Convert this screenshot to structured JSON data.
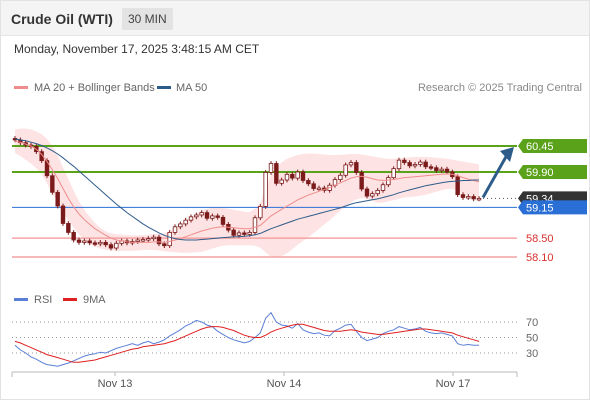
{
  "header": {
    "title": "Crude Oil (WTI)",
    "timeframe": "30 MIN"
  },
  "timestamp": "Monday, November 17, 2025 3:48:15 AM CET",
  "price_panel": {
    "legend": [
      {
        "label": "MA 20 + Bollinger Bands",
        "color": "#f08c8c"
      },
      {
        "label": "MA 50",
        "color": "#2e5c8a"
      }
    ],
    "credit": "Research © 2025 Trading Central"
  },
  "rsi_panel": {
    "legend": [
      {
        "label": "RSI",
        "color": "#5b7fd6"
      },
      {
        "label": "9MA",
        "color": "#e02020"
      }
    ]
  },
  "colors": {
    "resistance": "#5aa219",
    "support_pink": "#f4a3a3",
    "pivot_blue": "#2a6fd6",
    "current_price": "#333333",
    "arrow": "#2e5c8a",
    "candle": "#7a1a1a",
    "bollinger_fill": "#fde3e3",
    "rsi": "#5b7fd6",
    "rsi_ma": "#e02020"
  },
  "chart_data": [
    {
      "type": "candlestick",
      "x_labels": [
        "Nov 13",
        "Nov 14",
        "Nov 17"
      ],
      "ylim": [
        57.8,
        60.9
      ],
      "levels": [
        {
          "value": 60.45,
          "label": "60.45",
          "kind": "resistance"
        },
        {
          "value": 59.9,
          "label": "59.90",
          "kind": "resistance"
        },
        {
          "value": 59.34,
          "label": "59.34",
          "kind": "current"
        },
        {
          "value": 59.15,
          "label": "59.15",
          "kind": "pivot"
        },
        {
          "value": 58.5,
          "label": "58.50",
          "kind": "support"
        },
        {
          "value": 58.1,
          "label": "58.10",
          "kind": "support"
        }
      ],
      "close": [
        60.58,
        60.52,
        60.47,
        60.44,
        60.33,
        60.14,
        59.82,
        59.47,
        59.18,
        58.81,
        58.62,
        58.46,
        58.41,
        58.44,
        58.4,
        58.38,
        58.41,
        58.36,
        58.29,
        58.39,
        58.44,
        58.4,
        58.43,
        58.46,
        58.47,
        58.49,
        58.52,
        58.38,
        58.34,
        58.62,
        58.74,
        58.8,
        58.88,
        58.95,
        58.99,
        59.04,
        58.92,
        58.97,
        58.94,
        58.79,
        58.67,
        58.56,
        58.61,
        58.58,
        58.62,
        58.93,
        59.17,
        59.89,
        60.08,
        59.66,
        59.73,
        59.85,
        59.77,
        59.9,
        59.72,
        59.65,
        59.55,
        59.56,
        59.51,
        59.62,
        59.74,
        59.83,
        60.05,
        60.1,
        59.89,
        59.54,
        59.39,
        59.44,
        59.51,
        59.63,
        59.78,
        59.97,
        60.15,
        60.1,
        60.03,
        60.06,
        60.11,
        60.01,
        59.99,
        59.93,
        59.96,
        59.9,
        59.8,
        59.42,
        59.36,
        59.38,
        59.33,
        59.34
      ],
      "ma20": [
        60.55,
        60.53,
        60.49,
        60.45,
        60.38,
        60.27,
        60.12,
        59.95,
        59.76,
        59.55,
        59.34,
        59.16,
        59.01,
        58.89,
        58.79,
        58.7,
        58.63,
        58.56,
        58.5,
        58.46,
        58.44,
        58.42,
        58.41,
        58.41,
        58.41,
        58.41,
        58.42,
        58.42,
        58.41,
        58.43,
        58.46,
        58.49,
        58.53,
        58.57,
        58.61,
        58.65,
        58.68,
        58.71,
        58.73,
        58.74,
        58.73,
        58.72,
        58.71,
        58.7,
        58.7,
        58.73,
        58.77,
        58.87,
        58.97,
        59.04,
        59.11,
        59.18,
        59.24,
        59.31,
        59.36,
        59.41,
        59.45,
        59.49,
        59.53,
        59.57,
        59.62,
        59.67,
        59.72,
        59.77,
        59.8,
        59.81,
        59.79,
        59.76,
        59.73,
        59.72,
        59.73,
        59.74,
        59.76,
        59.78,
        59.79,
        59.8,
        59.81,
        59.82,
        59.83,
        59.84,
        59.85,
        59.86,
        59.85,
        59.82,
        59.78,
        59.75,
        59.72,
        59.69
      ],
      "bollinger_upper": [
        60.8,
        60.82,
        60.82,
        60.8,
        60.76,
        60.7,
        60.6,
        60.45,
        60.25,
        60.0,
        59.75,
        59.5,
        59.28,
        59.1,
        58.95,
        58.82,
        58.72,
        58.64,
        58.6,
        58.58,
        58.57,
        58.56,
        58.56,
        58.56,
        58.56,
        58.57,
        58.58,
        58.59,
        58.6,
        58.65,
        58.72,
        58.8,
        58.88,
        58.95,
        59.02,
        59.08,
        59.12,
        59.14,
        59.15,
        59.14,
        59.12,
        59.1,
        59.08,
        59.06,
        59.05,
        59.12,
        59.25,
        59.55,
        59.85,
        60.0,
        60.1,
        60.18,
        60.22,
        60.26,
        60.28,
        60.29,
        60.29,
        60.28,
        60.27,
        60.26,
        60.26,
        60.26,
        60.27,
        60.28,
        60.28,
        60.27,
        60.25,
        60.23,
        60.21,
        60.19,
        60.18,
        60.18,
        60.19,
        60.2,
        60.21,
        60.22,
        60.22,
        60.22,
        60.21,
        60.2,
        60.19,
        60.18,
        60.16,
        60.14,
        60.12,
        60.1,
        60.08,
        60.06
      ],
      "bollinger_lower": [
        60.3,
        60.24,
        60.16,
        60.08,
        59.98,
        59.85,
        59.66,
        59.45,
        59.25,
        59.05,
        58.88,
        58.72,
        58.58,
        58.46,
        58.38,
        58.32,
        58.28,
        58.25,
        58.24,
        58.23,
        58.23,
        58.23,
        58.23,
        58.24,
        58.25,
        58.25,
        58.25,
        58.24,
        58.22,
        58.21,
        58.2,
        58.19,
        58.19,
        58.19,
        58.2,
        58.21,
        58.24,
        58.28,
        58.31,
        58.34,
        58.35,
        58.35,
        58.35,
        58.35,
        58.35,
        58.34,
        58.3,
        58.2,
        58.1,
        58.08,
        58.12,
        58.18,
        58.26,
        58.36,
        58.44,
        58.52,
        58.6,
        58.7,
        58.79,
        58.88,
        58.98,
        59.08,
        59.17,
        59.26,
        59.32,
        59.35,
        59.33,
        59.29,
        59.25,
        59.25,
        59.28,
        59.3,
        59.33,
        59.36,
        59.37,
        59.38,
        59.4,
        59.42,
        59.45,
        59.48,
        59.51,
        59.54,
        59.54,
        59.5,
        59.44,
        59.4,
        59.36,
        59.32
      ],
      "ma50": [
        60.6,
        60.58,
        60.56,
        60.53,
        60.5,
        60.46,
        60.41,
        60.35,
        60.28,
        60.2,
        60.11,
        60.02,
        59.92,
        59.82,
        59.72,
        59.62,
        59.52,
        59.42,
        59.32,
        59.22,
        59.13,
        59.04,
        58.96,
        58.88,
        58.8,
        58.73,
        58.67,
        58.61,
        58.56,
        58.52,
        58.49,
        58.47,
        58.46,
        58.46,
        58.46,
        58.47,
        58.48,
        58.49,
        58.5,
        58.51,
        58.52,
        58.53,
        58.53,
        58.54,
        58.55,
        58.57,
        58.6,
        58.65,
        58.7,
        58.74,
        58.78,
        58.82,
        58.86,
        58.9,
        58.93,
        58.96,
        58.99,
        59.02,
        59.05,
        59.08,
        59.11,
        59.14,
        59.18,
        59.22,
        59.25,
        59.27,
        59.29,
        59.31,
        59.33,
        59.36,
        59.39,
        59.42,
        59.46,
        59.49,
        59.52,
        59.55,
        59.58,
        59.61,
        59.63,
        59.65,
        59.67,
        59.69,
        59.7,
        59.71,
        59.72,
        59.72,
        59.73,
        59.73
      ],
      "forecast_arrow": {
        "from": 59.34,
        "to": 60.45
      }
    },
    {
      "type": "line",
      "title": "RSI",
      "ylim": [
        0,
        100
      ],
      "y_ticks": [
        70,
        50,
        30
      ],
      "rsi": [
        40,
        34,
        30,
        25,
        22,
        18,
        15,
        14,
        13,
        15,
        17,
        20,
        23,
        26,
        28,
        29,
        31,
        30,
        33,
        36,
        38,
        40,
        42,
        40,
        43,
        45,
        42,
        44,
        47,
        52,
        56,
        60,
        65,
        68,
        72,
        70,
        66,
        64,
        58,
        54,
        50,
        47,
        45,
        43,
        45,
        50,
        56,
        75,
        82,
        70,
        66,
        65,
        62,
        68,
        60,
        57,
        55,
        56,
        53,
        52,
        59,
        62,
        66,
        67,
        58,
        50,
        46,
        48,
        50,
        55,
        58,
        60,
        64,
        62,
        60,
        61,
        63,
        58,
        56,
        55,
        56,
        54,
        52,
        42,
        40,
        41,
        40,
        40
      ],
      "rsi_ma": [
        45,
        43,
        40,
        37,
        34,
        31,
        28,
        26,
        24,
        22,
        20,
        18,
        18,
        19,
        20,
        21,
        23,
        25,
        27,
        29,
        31,
        33,
        35,
        36,
        38,
        39,
        40,
        41,
        42,
        44,
        46,
        49,
        52,
        55,
        58,
        61,
        63,
        64,
        64,
        63,
        61,
        59,
        56,
        53,
        51,
        50,
        50,
        53,
        57,
        60,
        62,
        64,
        66,
        67,
        67,
        65,
        63,
        61,
        59,
        58,
        58,
        58,
        59,
        60,
        59,
        57,
        56,
        55,
        54,
        54,
        55,
        56,
        57,
        58,
        59,
        60,
        61,
        61,
        60,
        59,
        58,
        57,
        56,
        53,
        51,
        49,
        47,
        45
      ]
    }
  ]
}
